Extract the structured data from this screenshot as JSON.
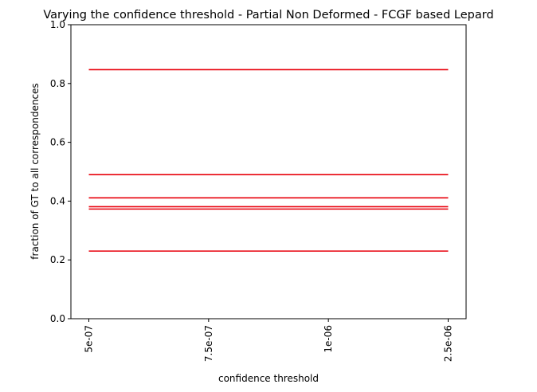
{
  "chart_data": {
    "type": "line",
    "title": "Varying the confidence threshold - Partial Non Deformed -  FCGF based Lepard",
    "xlabel": "confidence threshold",
    "ylabel": "fraction of GT to all correspondences",
    "categories": [
      "5e-07",
      "7.5e-07",
      "1e-06",
      "2.5e-06"
    ],
    "ylim": [
      0,
      1.0
    ],
    "yticks": [
      "0.0",
      "0.2",
      "0.4",
      "0.6",
      "0.8",
      "1.0"
    ],
    "grid": false,
    "line_color": "#e8000b",
    "series": [
      {
        "values": [
          0.847,
          0.847,
          0.847,
          0.847
        ]
      },
      {
        "values": [
          0.49,
          0.49,
          0.49,
          0.49
        ]
      },
      {
        "values": [
          0.411,
          0.411,
          0.411,
          0.411
        ]
      },
      {
        "values": [
          0.381,
          0.381,
          0.381,
          0.381
        ]
      },
      {
        "values": [
          0.373,
          0.373,
          0.373,
          0.373
        ]
      },
      {
        "values": [
          0.23,
          0.23,
          0.23,
          0.23
        ]
      }
    ]
  }
}
